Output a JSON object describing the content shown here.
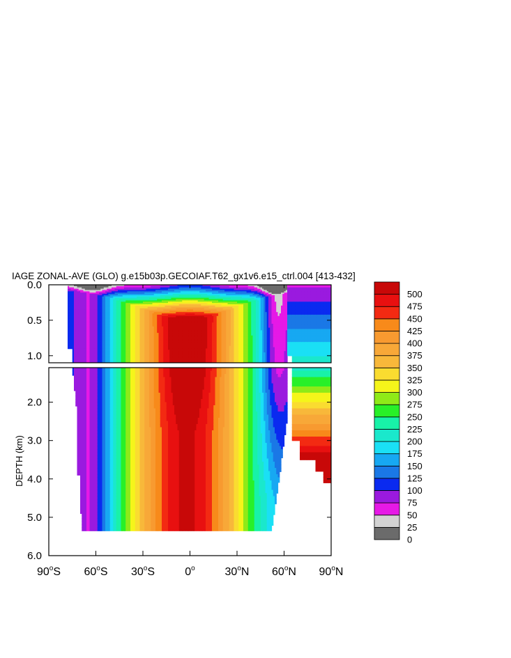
{
  "chart_data": {
    "type": "contour",
    "title": "IAGE ZONAL-AVE (GLO) g.e15b03p.GECOIAF.T62_gx1v6.e15_ctrl.004 [413-432]",
    "xlabel": "",
    "ylabel": "DEPTH (km)",
    "x_ticks": [
      {
        "value": -90,
        "deg": "90",
        "hemi": "S"
      },
      {
        "value": -60,
        "deg": "60",
        "hemi": "S"
      },
      {
        "value": -30,
        "deg": "30",
        "hemi": "S"
      },
      {
        "value": 0,
        "deg": "0",
        "hemi": ""
      },
      {
        "value": 30,
        "deg": "30",
        "hemi": "N"
      },
      {
        "value": 60,
        "deg": "60",
        "hemi": "N"
      },
      {
        "value": 90,
        "deg": "90",
        "hemi": "N"
      }
    ],
    "xlim": [
      -90,
      90
    ],
    "upper_panel": {
      "ylim": [
        0,
        1.1
      ],
      "y_ticks": [
        "0.0",
        "0.5",
        "1.0"
      ],
      "y_tick_values": [
        0,
        0.5,
        1.0
      ]
    },
    "lower_panel": {
      "ylim": [
        1.1,
        6.0
      ],
      "y_ticks": [
        "2.0",
        "3.0",
        "4.0",
        "5.0",
        "6.0"
      ],
      "y_tick_values": [
        2,
        3,
        4,
        5,
        6
      ]
    },
    "contour_levels": [
      0,
      25,
      50,
      75,
      100,
      125,
      150,
      175,
      200,
      225,
      250,
      275,
      300,
      325,
      350,
      375,
      400,
      425,
      450,
      475,
      500
    ],
    "level_labels": [
      "0",
      "25",
      "50",
      "75",
      "100",
      "125",
      "150",
      "175",
      "200",
      "225",
      "250",
      "275",
      "300",
      "325",
      "350",
      "375",
      "400",
      "425",
      "450",
      "475",
      "500"
    ],
    "colors": [
      "#6b6b6b",
      "#d3d3d3",
      "#e619e6",
      "#9a1adf",
      "#0a2af0",
      "#1a78e6",
      "#17a8f2",
      "#1ae0f5",
      "#1ae8cc",
      "#18f2a8",
      "#28f028",
      "#8fea18",
      "#f5f51a",
      "#fadc30",
      "#f8b83a",
      "#f8a838",
      "#f89a30",
      "#f88a1a",
      "#f32a12",
      "#e81010",
      "#c80808"
    ]
  }
}
